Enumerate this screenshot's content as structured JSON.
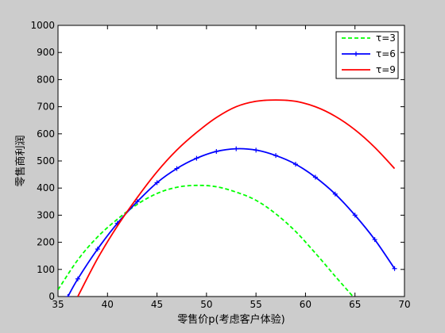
{
  "chart_data": {
    "type": "line",
    "title": "",
    "xlabel": "零售价p(考虑客户体验)",
    "ylabel": "零售商利润",
    "xlim": [
      35,
      70
    ],
    "ylim": [
      0,
      1000
    ],
    "xticks": [
      35,
      40,
      45,
      50,
      55,
      60,
      65,
      70
    ],
    "yticks": [
      0,
      100,
      200,
      300,
      400,
      500,
      600,
      700,
      800,
      900,
      1000
    ],
    "grid": false,
    "legend_position": "top-right",
    "series": [
      {
        "name": "τ=3",
        "color": "#00ff00",
        "style": "dashed",
        "marker": "none",
        "x": [
          35,
          37,
          39,
          41,
          43,
          45,
          47,
          49,
          51,
          53,
          55,
          57,
          59,
          61,
          63,
          64.8
        ],
        "values": [
          25,
          135,
          220,
          285,
          340,
          380,
          403,
          410,
          405,
          385,
          355,
          305,
          240,
          160,
          75,
          0
        ]
      },
      {
        "name": "τ=6",
        "color": "#0000ff",
        "style": "solid",
        "marker": "plus",
        "x": [
          36,
          37,
          39,
          41,
          43,
          45,
          47,
          49,
          51,
          53,
          55,
          57,
          59,
          61,
          63,
          65,
          67,
          69
        ],
        "values": [
          0,
          65,
          175,
          270,
          350,
          420,
          472,
          510,
          535,
          545,
          540,
          520,
          488,
          440,
          378,
          300,
          210,
          103
        ]
      },
      {
        "name": "τ=9",
        "color": "#ff0000",
        "style": "solid",
        "marker": "none",
        "x": [
          37,
          39,
          41,
          43,
          45,
          47,
          49,
          51,
          53,
          55,
          57,
          59,
          61,
          63,
          65,
          67,
          69
        ],
        "values": [
          0,
          140,
          260,
          365,
          460,
          540,
          605,
          660,
          700,
          720,
          725,
          720,
          700,
          665,
          615,
          550,
          472
        ]
      }
    ]
  }
}
